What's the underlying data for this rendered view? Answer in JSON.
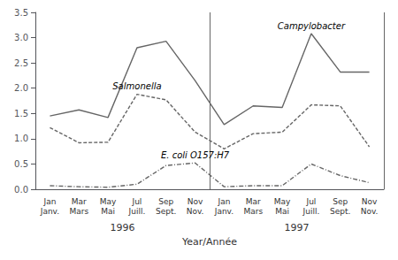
{
  "chart_data": {
    "type": "line",
    "categories": [
      "Jan\nJanv.",
      "Mar\nMars",
      "May\nMai",
      "Jul\nJuill.",
      "Sep\nSept.",
      "Nov\nNov.",
      "Jan\nJanv.",
      "Mar\nMars",
      "May\nMai",
      "Jul\nJuill.",
      "Sep\nSept.",
      "Nov\nNov."
    ],
    "year_labels": [
      "1996",
      "1997"
    ],
    "xlabel": "Year/Année",
    "series": [
      {
        "name": "Campylobacter",
        "color": "#666666",
        "line_style": "solid",
        "values": [
          1.45,
          1.57,
          1.42,
          2.8,
          2.93,
          2.15,
          1.28,
          1.65,
          1.62,
          3.08,
          2.32,
          2.32
        ]
      },
      {
        "name": "Salmonella",
        "color": "#666666",
        "line_style": "dashed",
        "values": [
          1.22,
          0.92,
          0.93,
          1.88,
          1.77,
          1.13,
          0.8,
          1.1,
          1.13,
          1.67,
          1.65,
          0.84
        ]
      },
      {
        "name": "E. coli O157:H7",
        "color": "#666666",
        "line_style": "dashdot",
        "values": [
          0.07,
          0.05,
          0.04,
          0.1,
          0.47,
          0.52,
          0.05,
          0.07,
          0.07,
          0.5,
          0.27,
          0.13
        ]
      }
    ],
    "ylim": [
      0,
      3.5
    ],
    "yticks": [
      {
        "value": 0,
        "label": "0.0"
      },
      0.5,
      {
        "value": 1.0,
        "label": "1.0"
      },
      1.5,
      {
        "value": 2.0,
        "label": "2.0"
      },
      2.5,
      {
        "value": 3.0,
        "label": "3.0"
      },
      3.5
    ],
    "grid": false
  }
}
